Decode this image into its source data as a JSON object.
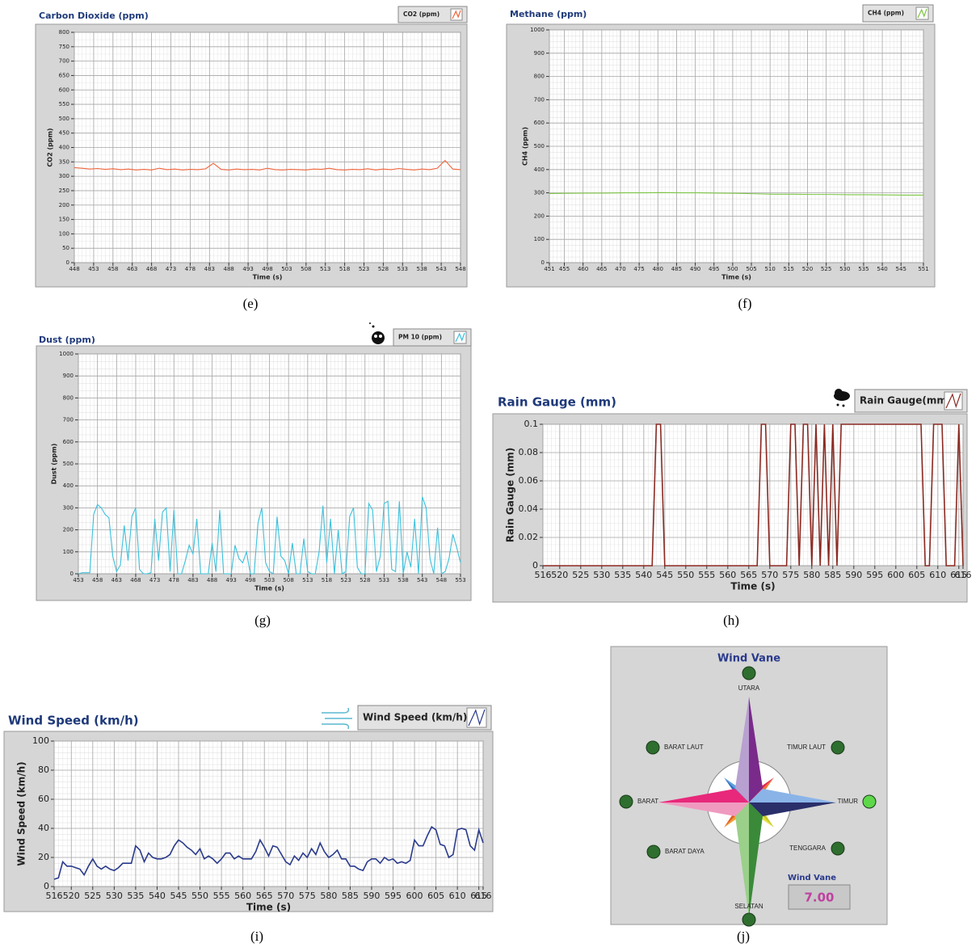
{
  "chart_data": [
    {
      "type": "line",
      "title": "Carbon Dioxide (ppm)",
      "caption": "(e)",
      "x_label": "Time (s)",
      "y_label": "CO2 (ppm)",
      "x": [
        448,
        450,
        452,
        454,
        456,
        458,
        460,
        462,
        464,
        466,
        468,
        470,
        472,
        474,
        476,
        478,
        480,
        482,
        484,
        486,
        488,
        490,
        492,
        494,
        496,
        498,
        500,
        502,
        504,
        506,
        508,
        510,
        512,
        514,
        516,
        518,
        520,
        522,
        524,
        526,
        528,
        530,
        532,
        534,
        536,
        538,
        540,
        542,
        544,
        546,
        548
      ],
      "series": [
        {
          "name": "CO2 (ppm)",
          "color": "#f0643c",
          "values": [
            330,
            328,
            325,
            327,
            324,
            326,
            323,
            325,
            322,
            324,
            322,
            328,
            323,
            325,
            322,
            324,
            323,
            326,
            345,
            324,
            322,
            325,
            323,
            324,
            322,
            328,
            323,
            322,
            324,
            323,
            322,
            325,
            324,
            328,
            323,
            322,
            324,
            323,
            326,
            322,
            325,
            323,
            327,
            324,
            322,
            325,
            323,
            328,
            355,
            325,
            323
          ]
        }
      ],
      "xlim": [
        448,
        548
      ],
      "xticks": [
        448,
        453,
        458,
        463,
        468,
        473,
        478,
        483,
        488,
        493,
        498,
        503,
        508,
        513,
        518,
        523,
        528,
        533,
        538,
        543,
        548
      ],
      "ylim": [
        0,
        800
      ],
      "yticks": [
        0,
        50,
        100,
        150,
        200,
        250,
        300,
        350,
        400,
        450,
        500,
        550,
        600,
        650,
        700,
        750,
        800
      ],
      "grid": true
    },
    {
      "type": "line",
      "title": "Methane (ppm)",
      "caption": "(f)",
      "x_label": "Time (s)",
      "y_label": "CH4 (ppm)",
      "x": [
        451,
        456,
        461,
        466,
        471,
        476,
        481,
        486,
        491,
        496,
        501,
        506,
        511,
        516,
        521,
        526,
        531,
        536,
        541,
        546,
        551
      ],
      "series": [
        {
          "name": "CH4 (ppm)",
          "color": "#7cc444",
          "values": [
            297,
            298,
            299,
            299,
            300,
            300,
            301,
            300,
            300,
            299,
            298,
            296,
            294,
            294,
            293,
            293,
            292,
            292,
            291,
            290,
            290
          ]
        }
      ],
      "xlim": [
        451,
        551
      ],
      "xticks": [
        451,
        455,
        460,
        465,
        470,
        475,
        480,
        485,
        490,
        495,
        500,
        505,
        510,
        515,
        520,
        525,
        530,
        535,
        540,
        545,
        551
      ],
      "ylim": [
        0,
        1000
      ],
      "yticks": [
        0,
        100,
        200,
        300,
        400,
        500,
        600,
        700,
        800,
        900,
        1000
      ],
      "grid": true
    },
    {
      "type": "line",
      "title": "Dust (ppm)",
      "caption": "(g)",
      "x_label": "Time (s)",
      "y_label": "Dust (ppm)",
      "x": [
        453,
        454,
        455,
        456,
        457,
        458,
        459,
        460,
        461,
        462,
        463,
        464,
        465,
        466,
        467,
        468,
        469,
        470,
        471,
        472,
        473,
        474,
        475,
        476,
        477,
        478,
        479,
        480,
        481,
        482,
        483,
        484,
        485,
        486,
        487,
        488,
        489,
        490,
        491,
        492,
        493,
        494,
        495,
        496,
        497,
        498,
        499,
        500,
        501,
        502,
        503,
        504,
        505,
        506,
        507,
        508,
        509,
        510,
        511,
        512,
        513,
        514,
        515,
        516,
        517,
        518,
        519,
        520,
        521,
        522,
        523,
        524,
        525,
        526,
        527,
        528,
        529,
        530,
        531,
        532,
        533,
        534,
        535,
        536,
        537,
        538,
        539,
        540,
        541,
        542,
        543,
        544,
        545,
        546,
        547,
        548,
        549,
        550,
        551,
        552,
        553
      ],
      "series": [
        {
          "name": "PM 10 (ppm)",
          "color": "#3cc0dc",
          "values": [
            0,
            5,
            5,
            5,
            270,
            315,
            300,
            270,
            255,
            80,
            10,
            40,
            220,
            60,
            260,
            300,
            20,
            0,
            0,
            5,
            250,
            60,
            280,
            300,
            10,
            290,
            0,
            0,
            60,
            130,
            90,
            250,
            0,
            0,
            0,
            140,
            10,
            290,
            0,
            0,
            0,
            130,
            70,
            50,
            100,
            0,
            0,
            230,
            300,
            50,
            10,
            0,
            260,
            80,
            60,
            0,
            140,
            0,
            0,
            160,
            10,
            0,
            0,
            100,
            310,
            50,
            250,
            0,
            200,
            0,
            10,
            260,
            300,
            30,
            0,
            0,
            320,
            290,
            10,
            80,
            320,
            330,
            20,
            10,
            330,
            0,
            100,
            30,
            250,
            0,
            350,
            300,
            70,
            0,
            210,
            0,
            10,
            70,
            180,
            120,
            50
          ]
        }
      ],
      "xlim": [
        453,
        553
      ],
      "xticks": [
        453,
        458,
        463,
        468,
        473,
        478,
        483,
        488,
        493,
        498,
        503,
        508,
        513,
        518,
        523,
        528,
        533,
        538,
        543,
        548,
        553
      ],
      "ylim": [
        0,
        1000
      ],
      "yticks": [
        0,
        100,
        200,
        300,
        400,
        500,
        600,
        700,
        800,
        900,
        1000
      ],
      "grid": true
    },
    {
      "type": "line",
      "title": "Rain Gauge (mm)",
      "caption": "(h)",
      "x_label": "Time (s)",
      "y_label": "Rain Gauge (mm)",
      "x": [
        516,
        542,
        543,
        544,
        545,
        567,
        568,
        569,
        570,
        574,
        575,
        576,
        577,
        578,
        579,
        580,
        581,
        582,
        583,
        584,
        585,
        586,
        587,
        606,
        607,
        608,
        609,
        610,
        611,
        612,
        614,
        615,
        616
      ],
      "series": [
        {
          "name": "Rain Gauge(mm)",
          "color": "#8b2a22",
          "values": [
            0,
            0,
            0.1,
            0.1,
            0,
            0,
            0.1,
            0.1,
            0,
            0,
            0.1,
            0.1,
            0,
            0.1,
            0.1,
            0,
            0.1,
            0,
            0.1,
            0,
            0.1,
            0,
            0.1,
            0.1,
            0,
            0,
            0.1,
            0.1,
            0.1,
            0,
            0,
            0.1,
            0
          ]
        }
      ],
      "xlim": [
        516,
        616
      ],
      "xticks": [
        516,
        520,
        525,
        530,
        535,
        540,
        545,
        550,
        555,
        560,
        565,
        570,
        575,
        580,
        585,
        590,
        595,
        600,
        605,
        610,
        615,
        616
      ],
      "ylim": [
        0,
        0.1
      ],
      "yticks": [
        0,
        0.02,
        0.04,
        0.06,
        0.08,
        0.1
      ],
      "grid": true
    },
    {
      "type": "line",
      "title": "Wind Speed (km/h)",
      "caption": "(i)",
      "x_label": "Time (s)",
      "y_label": "Wind Speed (km/h)",
      "x": [
        516,
        517,
        518,
        519,
        520,
        521,
        522,
        523,
        524,
        525,
        526,
        527,
        528,
        529,
        530,
        531,
        532,
        533,
        534,
        535,
        536,
        537,
        538,
        539,
        540,
        541,
        542,
        543,
        544,
        545,
        546,
        547,
        548,
        549,
        550,
        551,
        552,
        553,
        554,
        555,
        556,
        557,
        558,
        559,
        560,
        561,
        562,
        563,
        564,
        565,
        566,
        567,
        568,
        569,
        570,
        571,
        572,
        573,
        574,
        575,
        576,
        577,
        578,
        579,
        580,
        581,
        582,
        583,
        584,
        585,
        586,
        587,
        588,
        589,
        590,
        591,
        592,
        593,
        594,
        595,
        596,
        597,
        598,
        599,
        600,
        601,
        602,
        603,
        604,
        605,
        606,
        607,
        608,
        609,
        610,
        611,
        612,
        613,
        614,
        615,
        616
      ],
      "series": [
        {
          "name": "Wind Speed (km/h)",
          "color": "#2a3a8c",
          "values": [
            5,
            6,
            17,
            14,
            14,
            13,
            12,
            8,
            14,
            19,
            14,
            12,
            14,
            12,
            11,
            13,
            16,
            16,
            16,
            28,
            25,
            17,
            23,
            20,
            19,
            19,
            20,
            22,
            28,
            32,
            30,
            27,
            25,
            22,
            26,
            19,
            21,
            19,
            16,
            19,
            23,
            23,
            19,
            21,
            19,
            19,
            19,
            24,
            32,
            27,
            21,
            28,
            27,
            22,
            17,
            15,
            21,
            18,
            23,
            20,
            26,
            22,
            30,
            24,
            20,
            22,
            25,
            19,
            19,
            14,
            14,
            12,
            11,
            17,
            19,
            19,
            16,
            20,
            18,
            19,
            16,
            17,
            16,
            18,
            32,
            28,
            28,
            35,
            41,
            39,
            29,
            28,
            20,
            22,
            39,
            40,
            39,
            28,
            25,
            39,
            30
          ]
        }
      ],
      "xlim": [
        516,
        616
      ],
      "xticks": [
        516,
        520,
        525,
        530,
        535,
        540,
        545,
        550,
        555,
        560,
        565,
        570,
        575,
        580,
        585,
        590,
        595,
        600,
        605,
        610,
        615,
        616
      ],
      "ylim": [
        0,
        100
      ],
      "yticks": [
        0,
        20,
        40,
        60,
        80,
        100
      ],
      "grid": true
    }
  ],
  "wind_vane": {
    "title": "Wind Vane",
    "caption": "(j)",
    "directions": [
      "UTARA",
      "TIMUR LAUT",
      "TIMUR",
      "TENGGARA",
      "SELATAN",
      "BARAT DAYA",
      "BARAT",
      "BARAT LAUT"
    ],
    "active_direction": 2,
    "indicator_label": "Wind Vane",
    "value": 7,
    "value_label": "7.00"
  }
}
